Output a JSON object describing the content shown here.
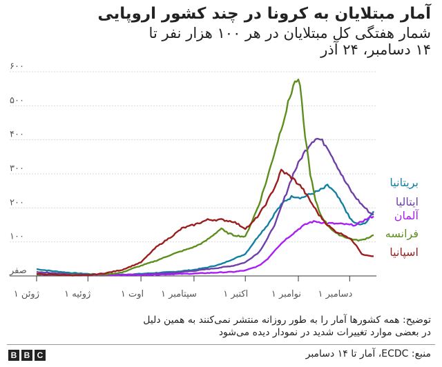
{
  "header": {
    "title": "آمار مبتلایان به کرونا در چند کشور اروپایی",
    "subtitle_line1": "شمار  هفتگی کل مبتلایان در هر ۱۰۰ هزار نفر تا",
    "subtitle_line2": "۱۴ دسامبر، ۲۴ آذر"
  },
  "footer": {
    "note_line1": "توضیح: همه کشورها آمار را به طور روزانه منتشر نمی‌کنند به همین دلیل",
    "note_line2": "در بعضی موارد تغییرات شدید در نمودار دیده می‌شود",
    "source": "منبع: ECDC، آمار تا ۱۴ دسامبر",
    "logo_letters": [
      "B",
      "B",
      "C"
    ]
  },
  "chart_data": {
    "type": "line",
    "x_unit": "day index from 1 June 2020",
    "xlim": [
      0,
      197
    ],
    "ylim": [
      0,
      600
    ],
    "y_ticks": [
      {
        "value": 0,
        "label": "صفر"
      },
      {
        "value": 100,
        "label": "۱۰۰"
      },
      {
        "value": 200,
        "label": "۲۰۰"
      },
      {
        "value": 300,
        "label": "۳۰۰"
      },
      {
        "value": 400,
        "label": "۴۰۰"
      },
      {
        "value": 500,
        "label": "۵۰۰"
      },
      {
        "value": 600,
        "label": "۶۰۰"
      }
    ],
    "x_ticks": [
      {
        "value": 0,
        "label": "۱ ژوئن"
      },
      {
        "value": 30,
        "label": "۱ ژوئیه"
      },
      {
        "value": 61,
        "label": "۱ اوت"
      },
      {
        "value": 92,
        "label": "۱ سپتامبر"
      },
      {
        "value": 122,
        "label": "۱ اکتبر"
      },
      {
        "value": 153,
        "label": "۱ نوامبر"
      },
      {
        "value": 183,
        "label": "۱ دسامبر"
      }
    ],
    "grid": true,
    "legend": "right",
    "series": [
      {
        "name": "بریتانیا",
        "color": "#1380A1",
        "points": [
          [
            0,
            20
          ],
          [
            10,
            14
          ],
          [
            20,
            9
          ],
          [
            30,
            6
          ],
          [
            40,
            4
          ],
          [
            50,
            4
          ],
          [
            60,
            6
          ],
          [
            70,
            9
          ],
          [
            80,
            12
          ],
          [
            92,
            18
          ],
          [
            100,
            25
          ],
          [
            108,
            35
          ],
          [
            115,
            50
          ],
          [
            120,
            60
          ],
          [
            122,
            65
          ],
          [
            125,
            85
          ],
          [
            130,
            120
          ],
          [
            135,
            150
          ],
          [
            140,
            190
          ],
          [
            145,
            220
          ],
          [
            150,
            235
          ],
          [
            155,
            230
          ],
          [
            160,
            240
          ],
          [
            165,
            250
          ],
          [
            168,
            258
          ],
          [
            170,
            265
          ],
          [
            172,
            258
          ],
          [
            175,
            240
          ],
          [
            180,
            200
          ],
          [
            183,
            170
          ],
          [
            186,
            155
          ],
          [
            190,
            150
          ],
          [
            193,
            160
          ],
          [
            196,
            180
          ],
          [
            197,
            190
          ]
        ]
      },
      {
        "name": "ایتالیا",
        "color": "#6E3FA8",
        "points": [
          [
            0,
            12
          ],
          [
            20,
            5
          ],
          [
            40,
            3
          ],
          [
            61,
            4
          ],
          [
            80,
            9
          ],
          [
            92,
            15
          ],
          [
            105,
            23
          ],
          [
            115,
            30
          ],
          [
            122,
            40
          ],
          [
            130,
            70
          ],
          [
            135,
            110
          ],
          [
            140,
            160
          ],
          [
            145,
            230
          ],
          [
            150,
            300
          ],
          [
            155,
            350
          ],
          [
            160,
            390
          ],
          [
            163,
            405
          ],
          [
            166,
            400
          ],
          [
            170,
            380
          ],
          [
            175,
            330
          ],
          [
            180,
            280
          ],
          [
            185,
            240
          ],
          [
            190,
            210
          ],
          [
            195,
            185
          ],
          [
            197,
            180
          ]
        ]
      },
      {
        "name": "آلمان",
        "color": "#A81FF5",
        "points": [
          [
            0,
            4
          ],
          [
            30,
            2
          ],
          [
            61,
            3
          ],
          [
            92,
            7
          ],
          [
            115,
            12
          ],
          [
            122,
            16
          ],
          [
            130,
            30
          ],
          [
            135,
            50
          ],
          [
            140,
            80
          ],
          [
            145,
            105
          ],
          [
            150,
            125
          ],
          [
            155,
            145
          ],
          [
            160,
            158
          ],
          [
            163,
            160
          ],
          [
            170,
            155
          ],
          [
            180,
            152
          ],
          [
            183,
            150
          ],
          [
            187,
            150
          ],
          [
            190,
            160
          ],
          [
            195,
            172
          ],
          [
            197,
            175
          ]
        ]
      },
      {
        "name": "فرانسه",
        "color": "#5D8E1D",
        "points": [
          [
            0,
            5
          ],
          [
            20,
            3
          ],
          [
            40,
            4
          ],
          [
            50,
            10
          ],
          [
            55,
            20
          ],
          [
            61,
            30
          ],
          [
            70,
            45
          ],
          [
            80,
            65
          ],
          [
            92,
            85
          ],
          [
            98,
            100
          ],
          [
            102,
            115
          ],
          [
            108,
            140
          ],
          [
            110,
            130
          ],
          [
            115,
            120
          ],
          [
            122,
            115
          ],
          [
            125,
            150
          ],
          [
            130,
            210
          ],
          [
            135,
            290
          ],
          [
            140,
            380
          ],
          [
            145,
            470
          ],
          [
            150,
            560
          ],
          [
            152,
            575
          ],
          [
            154,
            560
          ],
          [
            156,
            450
          ],
          [
            160,
            300
          ],
          [
            163,
            220
          ],
          [
            166,
            180
          ],
          [
            170,
            150
          ],
          [
            175,
            125
          ],
          [
            180,
            115
          ],
          [
            183,
            110
          ],
          [
            187,
            105
          ],
          [
            190,
            105
          ],
          [
            195,
            115
          ],
          [
            197,
            120
          ]
        ]
      },
      {
        "name": "اسپانیا",
        "color": "#9B1D1D",
        "points": [
          [
            0,
            6
          ],
          [
            20,
            2
          ],
          [
            30,
            2
          ],
          [
            40,
            8
          ],
          [
            50,
            18
          ],
          [
            61,
            40
          ],
          [
            70,
            85
          ],
          [
            80,
            120
          ],
          [
            85,
            140
          ],
          [
            92,
            150
          ],
          [
            100,
            165
          ],
          [
            108,
            165
          ],
          [
            115,
            160
          ],
          [
            120,
            145
          ],
          [
            122,
            140
          ],
          [
            125,
            150
          ],
          [
            130,
            180
          ],
          [
            135,
            220
          ],
          [
            140,
            270
          ],
          [
            143,
            310
          ],
          [
            146,
            300
          ],
          [
            150,
            285
          ],
          [
            155,
            260
          ],
          [
            160,
            220
          ],
          [
            165,
            180
          ],
          [
            170,
            150
          ],
          [
            175,
            130
          ],
          [
            180,
            120
          ],
          [
            183,
            110
          ],
          [
            187,
            90
          ],
          [
            190,
            65
          ],
          [
            193,
            60
          ],
          [
            197,
            58
          ]
        ]
      }
    ]
  }
}
